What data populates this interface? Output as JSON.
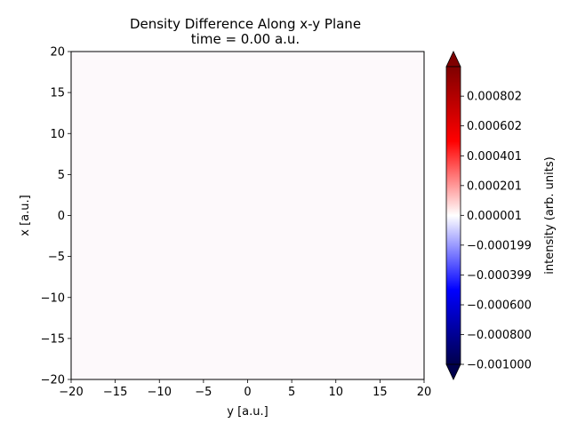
{
  "chart_data": {
    "type": "heatmap",
    "title": "Density Difference Along x-y Plane",
    "subtitle": "time = 0.00 a.u.",
    "xlabel": "y [a.u.]",
    "ylabel": "x [a.u.]",
    "xlim": [
      -20,
      20
    ],
    "ylim": [
      -20,
      20
    ],
    "x_ticks": [
      -20,
      -15,
      -10,
      -5,
      0,
      5,
      10,
      15,
      20
    ],
    "x_tick_labels": [
      "−20",
      "−15",
      "−10",
      "−5",
      "0",
      "5",
      "10",
      "15",
      "20"
    ],
    "y_ticks": [
      -20,
      -15,
      -10,
      -5,
      0,
      5,
      10,
      15,
      20
    ],
    "y_tick_labels": [
      "−20",
      "−15",
      "−10",
      "−5",
      "0",
      "5",
      "10",
      "15",
      "20"
    ],
    "field_value": 0.0,
    "field_color": "#fdf9fb",
    "grid": false,
    "colorbar": {
      "label": "intensity (arb. units)",
      "colormap": "seismic",
      "vmin": -0.001,
      "vmax": 0.001,
      "extend": "both",
      "ticks": [
        -0.001,
        -0.0008,
        -0.0006,
        -0.000399,
        -0.000199,
        1e-06,
        0.000201,
        0.000401,
        0.000602,
        0.000802
      ],
      "tick_labels": [
        "−0.001000",
        "−0.000800",
        "−0.000600",
        "−0.000399",
        "−0.000199",
        "0.000001",
        "0.000201",
        "0.000401",
        "0.000602",
        "0.000802"
      ],
      "color_stops": [
        "#00004c",
        "#0000ff",
        "#ffffff",
        "#ff0000",
        "#7f0000"
      ]
    }
  }
}
